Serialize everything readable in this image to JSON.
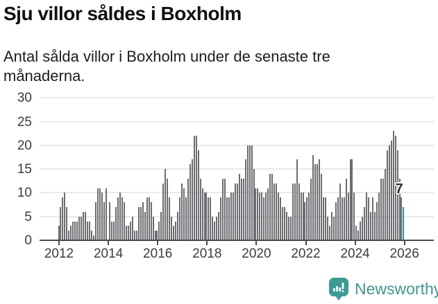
{
  "header": {
    "title": "Sju villor såldes i Boxholm",
    "subtitle": "Antal sålda villor i Boxholm under de senaste tre månaderna."
  },
  "chart_data": {
    "type": "bar",
    "title": "Sju villor såldes i Boxholm",
    "subtitle": "Antal sålda villor i Boxholm under de senaste tre månaderna.",
    "x_start_month": "2012-01",
    "x_end_month": "2026-01",
    "x_interval": "monthly",
    "values": [
      3,
      7,
      9,
      10,
      7,
      2,
      3,
      4,
      4,
      4,
      5,
      5,
      6,
      6,
      4,
      4,
      2,
      1,
      8,
      11,
      11,
      10,
      8,
      11,
      0,
      8,
      4,
      4,
      7,
      9,
      10,
      9,
      8,
      3,
      3,
      4,
      5,
      2,
      2,
      7,
      7,
      8,
      6,
      9,
      9,
      8,
      5,
      2,
      2,
      4,
      6,
      12,
      15,
      13,
      9,
      5,
      3,
      4,
      6,
      9,
      12,
      11,
      9,
      13,
      16,
      17,
      22,
      22,
      19,
      13,
      11,
      10,
      10,
      9,
      9,
      5,
      4,
      5,
      6,
      9,
      13,
      13,
      9,
      9,
      10,
      10,
      12,
      12,
      14,
      13,
      13,
      17,
      20,
      20,
      20,
      15,
      11,
      11,
      10,
      10,
      9,
      10,
      11,
      14,
      14,
      12,
      12,
      10,
      9,
      7,
      7,
      6,
      5,
      5,
      12,
      12,
      17,
      12,
      10,
      10,
      8,
      9,
      10,
      13,
      18,
      16,
      16,
      17,
      14,
      9,
      9,
      5,
      3,
      6,
      5,
      8,
      9,
      12,
      9,
      9,
      13,
      10,
      17,
      17,
      10,
      3,
      2,
      4,
      5,
      7,
      10,
      9,
      6,
      9,
      6,
      8,
      10,
      13,
      13,
      15,
      19,
      20,
      21,
      23,
      22,
      19,
      13,
      9,
      7
    ],
    "x_tick_labels": [
      "2012",
      "2014",
      "2016",
      "2018",
      "2020",
      "2022",
      "2024",
      "2026"
    ],
    "y_ticks": [
      0,
      5,
      10,
      15,
      20,
      25,
      30
    ],
    "ylim": [
      0,
      30
    ],
    "xlabel": "",
    "ylabel": "",
    "grid": "horizontal",
    "legend": "none",
    "bar_color": "#6c6c71",
    "highlight_last_bar_color": "#149a9c",
    "annotation": {
      "text": "7",
      "target": "last-bar",
      "value": 7
    }
  },
  "footer": {
    "brand": "Newsworthy",
    "brand_color": "#41968f",
    "logo_icon": "bar-chart-speech-bubble"
  }
}
